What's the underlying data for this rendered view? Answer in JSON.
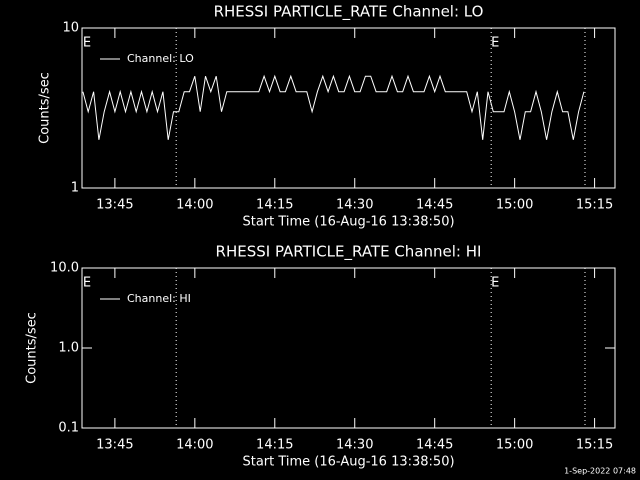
{
  "chart_data": [
    {
      "type": "line",
      "title": "RHESSI PARTICLE_RATE Channel: LO",
      "xlabel": "Start Time (16-Aug-16 13:38:50)",
      "ylabel": "Counts/sec",
      "ylog": true,
      "ylim": [
        1,
        10
      ],
      "yticks": [
        1,
        10
      ],
      "xlim": [
        818.83,
        918.83
      ],
      "xticks": [
        {
          "value": 825,
          "label": "13:45"
        },
        {
          "value": 840,
          "label": "14:00"
        },
        {
          "value": 855,
          "label": "14:15"
        },
        {
          "value": 870,
          "label": "14:30"
        },
        {
          "value": 885,
          "label": "14:45"
        },
        {
          "value": 900,
          "label": "15:00"
        },
        {
          "value": 915,
          "label": "15:15"
        }
      ],
      "legend": "upper left",
      "vlines": [
        836.5,
        895.6,
        913.2
      ],
      "annotations": [
        {
          "text": "E",
          "x": 819
        },
        {
          "text": "E",
          "x": 895.6
        }
      ],
      "series": [
        {
          "name": "Channel: LO",
          "color": "#ffffff",
          "x": [
            819,
            820,
            821,
            822,
            823,
            824,
            825,
            826,
            827,
            828,
            829,
            830,
            831,
            832,
            833,
            834,
            835,
            836,
            837,
            838,
            839,
            840,
            841,
            842,
            843,
            844,
            845,
            846,
            847,
            848,
            849,
            850,
            851,
            852,
            853,
            854,
            855,
            856,
            857,
            858,
            859,
            860,
            861,
            862,
            863,
            864,
            865,
            866,
            867,
            868,
            869,
            870,
            871,
            872,
            873,
            874,
            875,
            876,
            877,
            878,
            879,
            880,
            881,
            882,
            883,
            884,
            885,
            886,
            887,
            888,
            889,
            890,
            891,
            892,
            893,
            894,
            895,
            896,
            897,
            898,
            899,
            900,
            901,
            902,
            903,
            904,
            905,
            906,
            907,
            908,
            909,
            910,
            911,
            912,
            913
          ],
          "values": [
            4,
            3,
            4,
            2,
            3,
            4,
            3,
            4,
            3,
            4,
            3,
            4,
            3,
            4,
            3,
            4,
            2,
            3,
            3,
            4,
            4,
            5,
            3,
            5,
            4,
            5,
            3,
            4,
            4,
            4,
            4,
            4,
            4,
            4,
            5,
            4,
            5,
            4,
            4,
            5,
            4,
            4,
            4,
            3,
            4,
            5,
            4,
            5,
            4,
            4,
            5,
            4,
            4,
            5,
            5,
            4,
            4,
            4,
            5,
            4,
            4,
            5,
            4,
            4,
            4,
            5,
            4,
            5,
            4,
            4,
            4,
            4,
            4,
            3,
            4,
            2,
            4,
            3,
            3,
            3,
            4,
            3,
            2,
            3,
            3,
            4,
            3,
            2,
            3,
            4,
            3,
            3,
            2,
            3,
            4
          ]
        }
      ]
    },
    {
      "type": "line",
      "title": "RHESSI PARTICLE_RATE Channel: HI",
      "xlabel": "Start Time (16-Aug-16 13:38:50)",
      "ylabel": "Counts/sec",
      "ylog": true,
      "ylim": [
        0.1,
        10
      ],
      "yticks": [
        0.1,
        {
          "value": 1,
          "label": "1.0"
        },
        {
          "value": 10,
          "label": "10.0"
        }
      ],
      "xlim": [
        818.83,
        918.83
      ],
      "xticks": [
        {
          "value": 825,
          "label": "13:45"
        },
        {
          "value": 840,
          "label": "14:00"
        },
        {
          "value": 855,
          "label": "14:15"
        },
        {
          "value": 870,
          "label": "14:30"
        },
        {
          "value": 885,
          "label": "14:45"
        },
        {
          "value": 900,
          "label": "15:00"
        },
        {
          "value": 915,
          "label": "15:15"
        }
      ],
      "legend": "upper left",
      "vlines": [
        836.5,
        895.6,
        913.2
      ],
      "annotations": [
        {
          "text": "E",
          "x": 819
        },
        {
          "text": "E",
          "x": 895.6
        }
      ],
      "series": [
        {
          "name": "Channel: HI",
          "color": "#ffffff",
          "x": [],
          "values": []
        }
      ]
    }
  ],
  "footer": "1-Sep-2022 07:48"
}
